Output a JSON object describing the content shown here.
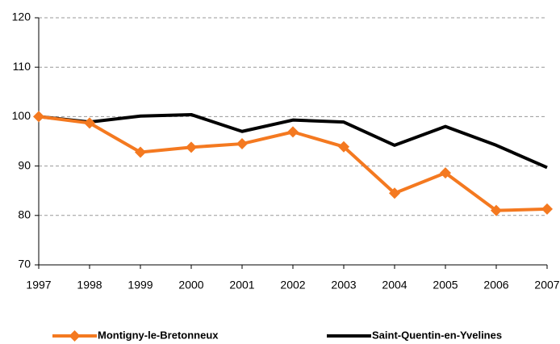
{
  "chart_data": {
    "type": "line",
    "x": [
      1997,
      1998,
      1999,
      2000,
      2001,
      2002,
      2003,
      2004,
      2005,
      2006,
      2007
    ],
    "xlim": [
      1997,
      2007
    ],
    "xticks": [
      1997,
      1998,
      1999,
      2000,
      2001,
      2002,
      2003,
      2004,
      2005,
      2006,
      2007
    ],
    "ylim": [
      70,
      120
    ],
    "yticks": [
      70,
      80,
      90,
      100,
      110,
      120
    ],
    "grid": true,
    "legend": "bottom",
    "series": [
      {
        "name": "Montigny-le-Bretonneux",
        "color": "#f47920",
        "marker": "diamond",
        "values": [
          100,
          98.7,
          92.8,
          93.8,
          94.5,
          96.9,
          93.9,
          84.5,
          88.6,
          81.0,
          81.3
        ]
      },
      {
        "name": "Saint-Quentin-en-Yvelines",
        "color": "#000000",
        "marker": "none",
        "values": [
          100,
          98.9,
          100.1,
          100.4,
          97.0,
          99.3,
          98.9,
          94.2,
          98.0,
          94.2,
          89.7
        ]
      }
    ]
  }
}
